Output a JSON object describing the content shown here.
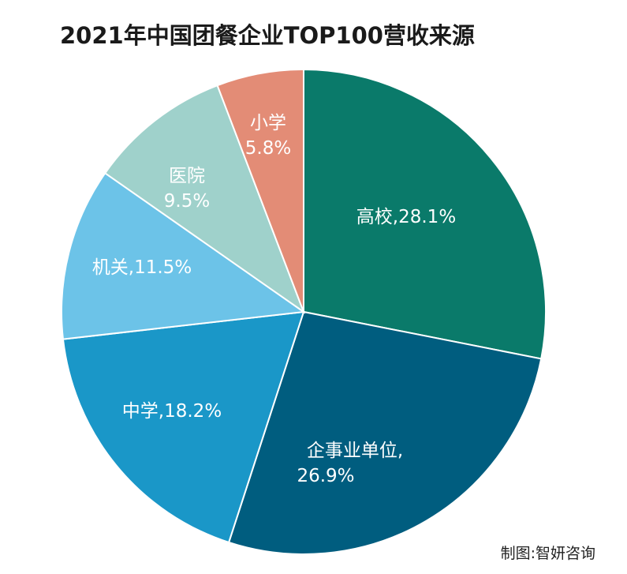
{
  "chart_data": {
    "type": "pie",
    "title": "2021年中国团餐企业TOP100营收来源",
    "slices": [
      {
        "label": "高校",
        "value": 28.1,
        "display": "28.1%",
        "color": "#0a7a6a"
      },
      {
        "label": "企事业单位",
        "value": 26.9,
        "display": "26.9%",
        "color": "#005d7f"
      },
      {
        "label": "中学",
        "value": 18.2,
        "display": "18.2%",
        "color": "#1a97c8"
      },
      {
        "label": "机关",
        "value": 11.5,
        "display": "11.5%",
        "color": "#6cc3e8"
      },
      {
        "label": "医院",
        "value": 9.5,
        "display": "9.5%",
        "color": "#9fd1cb"
      },
      {
        "label": "小学",
        "value": 5.8,
        "display": "5.8%",
        "color": "#e38c76"
      }
    ]
  },
  "source_note": "制图:智妍咨询"
}
